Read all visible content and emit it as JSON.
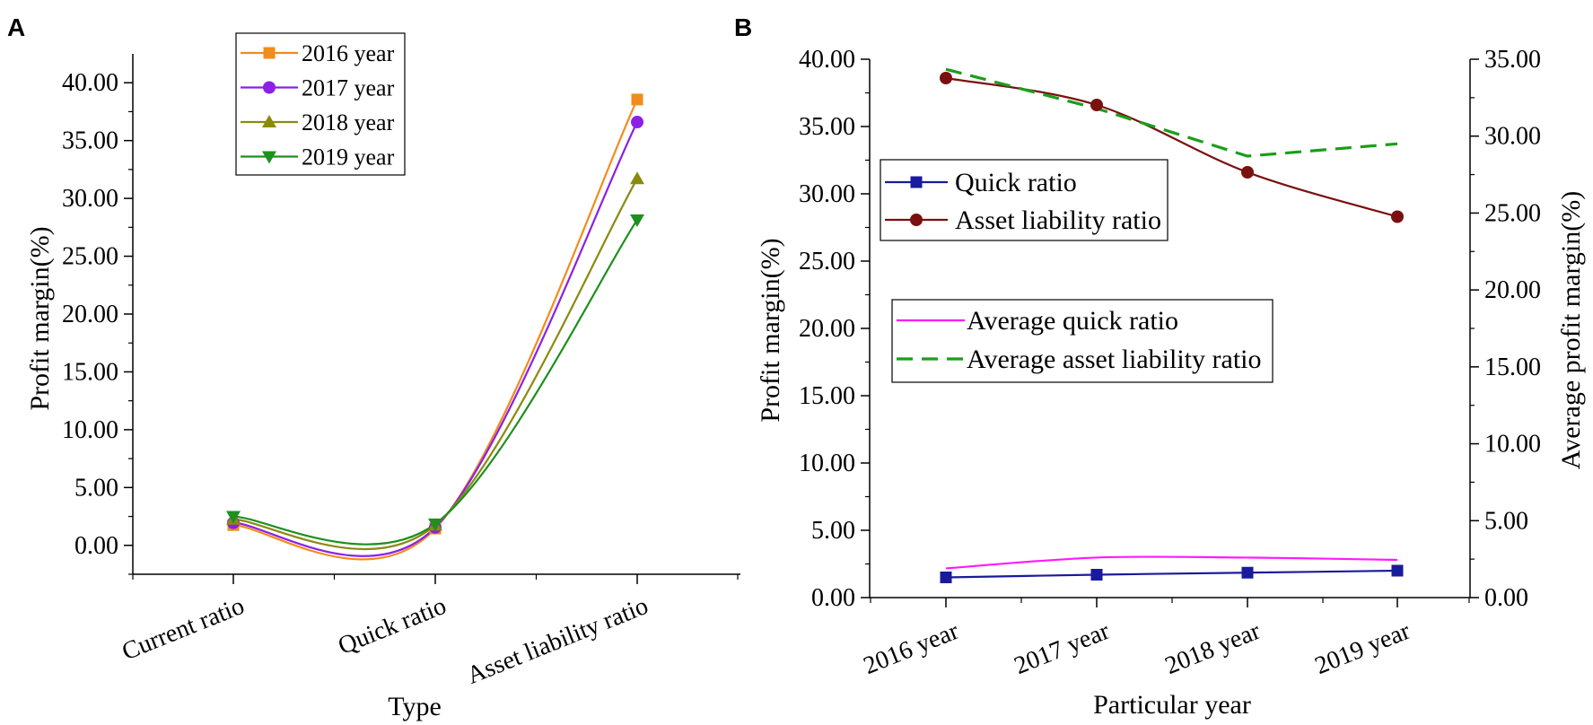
{
  "chart_data": [
    {
      "panel": "A",
      "type": "line",
      "categories": [
        "Current ratio",
        "Quick ratio",
        "Asset liability ratio"
      ],
      "xlabel": "Type",
      "ylabel": "Profit margin(%)",
      "ylim": [
        -2.5,
        42.5
      ],
      "yticks": [
        "0.00",
        "5.00",
        "10.00",
        "15.00",
        "20.00",
        "25.00",
        "30.00",
        "35.00",
        "40.00"
      ],
      "legend_position": "top-center",
      "series": [
        {
          "name": "2016 year",
          "color": "#f28c1c",
          "marker": "square",
          "values": [
            1.75,
            1.45,
            38.55
          ]
        },
        {
          "name": "2017 year",
          "color": "#8b20e8",
          "marker": "circle",
          "values": [
            1.95,
            1.55,
            36.6
          ]
        },
        {
          "name": "2018 year",
          "color": "#8a8a10",
          "marker": "triangle-up",
          "values": [
            2.25,
            1.75,
            31.7
          ]
        },
        {
          "name": "2019 year",
          "color": "#1f8f1f",
          "marker": "triangle-down",
          "values": [
            2.5,
            1.85,
            28.15
          ]
        }
      ]
    },
    {
      "panel": "B",
      "type": "line",
      "categories": [
        "2016 year",
        "2017 year",
        "2018 year",
        "2019 year"
      ],
      "xlabel": "Particular year",
      "ylabel": "Profit margin(%)",
      "ylabel_right": "Average profit margin(%)",
      "ylim": [
        0,
        40
      ],
      "ylim_right": [
        0,
        35
      ],
      "yticks": [
        "0.00",
        "5.00",
        "10.00",
        "15.00",
        "20.00",
        "25.00",
        "30.00",
        "35.00",
        "40.00"
      ],
      "yticks_right": [
        "0.00",
        "5.00",
        "10.00",
        "15.00",
        "20.00",
        "25.00",
        "30.00",
        "35.00"
      ],
      "series": [
        {
          "name": "Quick ratio",
          "axis": "left",
          "color": "#1a1a9c",
          "marker": "square",
          "style": "solid",
          "values": [
            1.5,
            1.7,
            1.85,
            2.0
          ]
        },
        {
          "name": "Asset liability ratio",
          "axis": "left",
          "color": "#7a1010",
          "marker": "circle",
          "style": "solid",
          "values": [
            38.6,
            36.6,
            31.6,
            28.3
          ]
        },
        {
          "name": "Average quick ratio",
          "axis": "right",
          "color": "#ff1aff",
          "marker": "none",
          "style": "solid",
          "values": [
            1.9,
            2.6,
            2.6,
            2.45
          ]
        },
        {
          "name": "Average asset liability ratio",
          "axis": "right",
          "color": "#1a9e1a",
          "marker": "none",
          "style": "dashed",
          "values": [
            34.35,
            31.8,
            28.7,
            29.5
          ]
        }
      ],
      "legend_position": "left-center"
    }
  ]
}
